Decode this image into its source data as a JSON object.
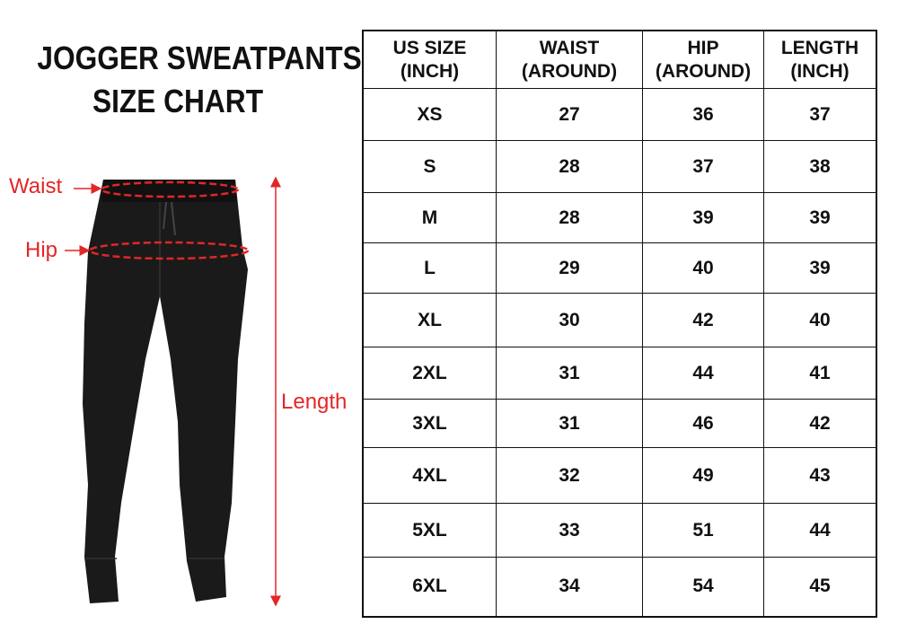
{
  "title": {
    "line1": "JOGGER SWEATPANTS",
    "line2": "SIZE CHART"
  },
  "labels": {
    "waist": "Waist",
    "hip": "Hip",
    "length": "Length"
  },
  "colors": {
    "annotation": "#e32626",
    "garment": "#1a1a1a"
  },
  "table": {
    "headers": [
      [
        "US SIZE",
        "(INCH)"
      ],
      [
        "WAIST",
        "(AROUND)"
      ],
      [
        "HIP",
        "(AROUND)"
      ],
      [
        "LENGTH",
        "(INCH)"
      ]
    ],
    "rows": [
      [
        "XS",
        "27",
        "36",
        "37"
      ],
      [
        "S",
        "28",
        "37",
        "38"
      ],
      [
        "M",
        "28",
        "39",
        "39"
      ],
      [
        "L",
        "29",
        "40",
        "39"
      ],
      [
        "XL",
        "30",
        "42",
        "40"
      ],
      [
        "2XL",
        "31",
        "44",
        "41"
      ],
      [
        "3XL",
        "31",
        "46",
        "42"
      ],
      [
        "4XL",
        "32",
        "49",
        "43"
      ],
      [
        "5XL",
        "33",
        "51",
        "44"
      ],
      [
        "6XL",
        "34",
        "54",
        "45"
      ]
    ]
  }
}
